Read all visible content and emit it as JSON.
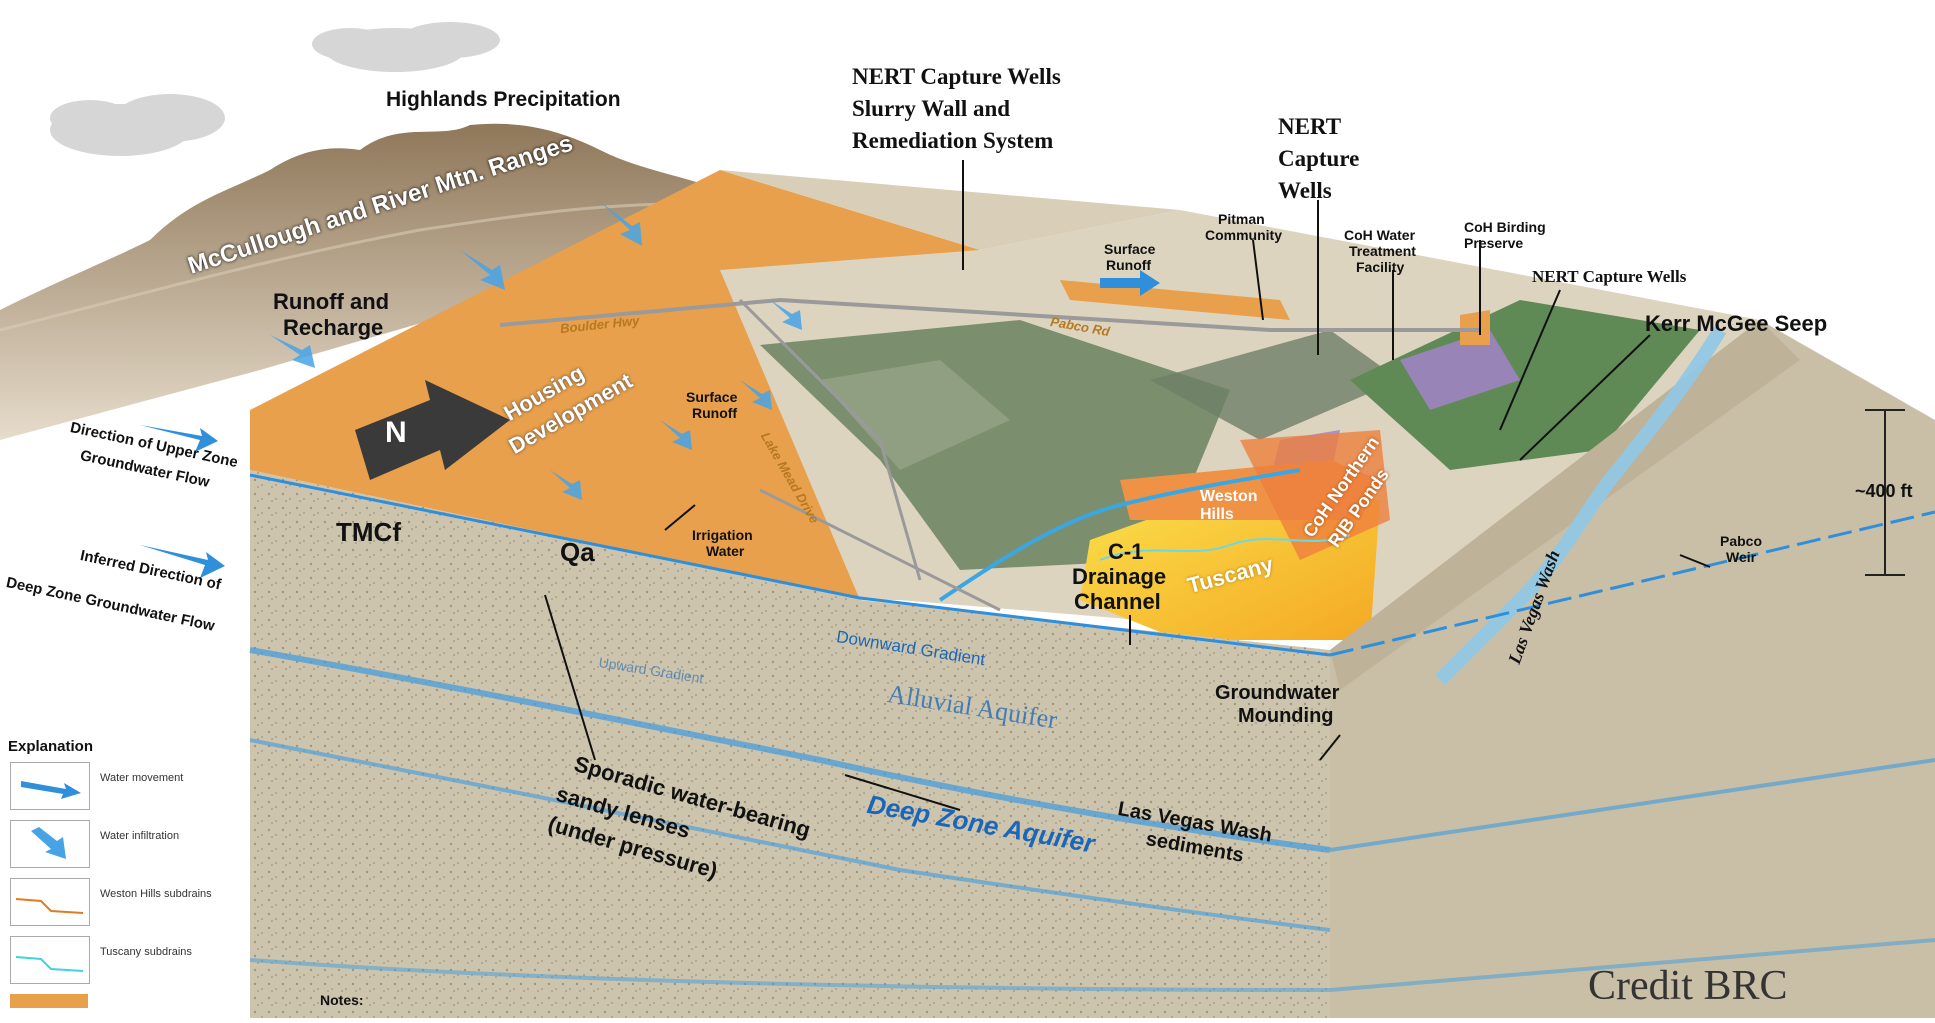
{
  "labels": {
    "highlands_precipitation": "Highlands Precipitation",
    "mountain_ranges": "McCullough and River Mtn. Ranges",
    "runoff_recharge_1": "Runoff and",
    "runoff_recharge_2": "Recharge",
    "nert_slurry_1": "NERT Capture Wells",
    "nert_slurry_2": "Slurry Wall and",
    "nert_slurry_3": "Remediation System",
    "nert_capture_wells_1": "NERT",
    "nert_capture_wells_2": "Capture",
    "nert_capture_wells_3": "Wells",
    "pitman_1": "Pitman",
    "pitman_2": "Community",
    "coh_water_1": "CoH Water",
    "coh_water_2": "Treatment",
    "coh_water_3": "Facility",
    "coh_birding_1": "CoH Birding",
    "coh_birding_2": "Preserve",
    "nert_capture_wells_right": "NERT Capture Wells",
    "kerr_mcgee_seep": "Kerr McGee Seep",
    "surface_runoff_top_1": "Surface",
    "surface_runoff_top_2": "Runoff",
    "surface_runoff_mid_1": "Surface",
    "surface_runoff_mid_2": "Runoff",
    "irrigation_water_1": "Irrigation",
    "irrigation_water_2": "Water",
    "housing_development_1": "Housing",
    "housing_development_2": "Development",
    "north_arrow": "N",
    "boulder_hwy": "Boulder Hwy",
    "pabco_rd": "Pabco Rd",
    "lake_mead_drive": "Lake Mead Drive",
    "weston_hills_1": "Weston",
    "weston_hills_2": "Hills",
    "tuscany": "Tuscany",
    "coh_northern_1": "CoH Northern",
    "coh_northern_2": "RIB Ponds",
    "c1_drainage_1": "C-1",
    "c1_drainage_2": "Drainage",
    "c1_drainage_3": "Channel",
    "dir_upper_1": "Direction of Upper Zone",
    "dir_upper_2": "Groundwater Flow",
    "dir_deep_1": "Inferred Direction of",
    "dir_deep_2": "Deep Zone Groundwater Flow",
    "tmcf": "TMCf",
    "qa": "Qa",
    "downward_gradient": "Downward Gradient",
    "upward_gradient": "Upward Gradient",
    "alluvial_aquifer": "Alluvial Aquifer",
    "deep_zone_aquifer": "Deep Zone Aquifer",
    "sporadic_1": "Sporadic water-bearing",
    "sporadic_2": "sandy lenses",
    "sporadic_3": "(under pressure)",
    "groundwater_mounding_1": "Groundwater",
    "groundwater_mounding_2": "Mounding",
    "lv_wash_sed_1": "Las Vegas Wash",
    "lv_wash_sed_2": "sediments",
    "las_vegas_wash": "Las Vegas Wash",
    "pabco_weir_1": "Pabco",
    "pabco_weir_2": "Weir",
    "depth": "~400 ft"
  },
  "legend": {
    "title": "Explanation",
    "items": [
      {
        "label": "Water movement"
      },
      {
        "label": "Water infiltration"
      },
      {
        "label": "Weston Hills subdrains"
      },
      {
        "label": "Tuscany subdrains"
      }
    ]
  },
  "notes_title": "Notes:",
  "credit": "Credit BRC",
  "colors": {
    "orange_land": "#e8a04c",
    "block_side": "#c9bfa7",
    "water_blue": "#2f8fdb",
    "tuscany_yellow": "#f7c730",
    "green_area": "#5f8a55",
    "mountain": "#b29b7c"
  }
}
